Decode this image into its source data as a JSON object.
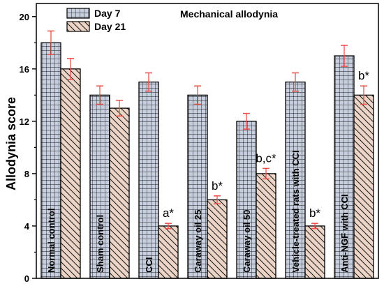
{
  "chart_data": {
    "type": "bar",
    "title": "Mechanical allodynia",
    "xlabel": "",
    "ylabel": "Allodynia score",
    "ylim": [
      0,
      21
    ],
    "yticks": [
      0,
      4,
      8,
      12,
      16,
      20
    ],
    "legend_position": "top-left",
    "categories": [
      "Normal control",
      "Sham control",
      "CCI",
      "Caraway oil 25",
      "Caraway oil 50",
      "Vehicle-treated rats with CCI",
      "Anti-NGF with CCI"
    ],
    "series": [
      {
        "name": "Day 7",
        "color": "#c7cfdf",
        "pattern": "grid",
        "values": [
          18,
          14,
          15,
          14,
          12,
          15,
          17
        ],
        "errors": [
          0.9,
          0.7,
          0.7,
          0.7,
          0.6,
          0.7,
          0.8
        ]
      },
      {
        "name": "Day 21",
        "color": "#ecd5c6",
        "pattern": "diagonal",
        "values": [
          16,
          13,
          4,
          6,
          8,
          4,
          14
        ],
        "errors": [
          0.8,
          0.6,
          0.2,
          0.3,
          0.4,
          0.2,
          0.7
        ]
      }
    ],
    "annotations": [
      "",
      "",
      "a*",
      "b*",
      "b,c*",
      "b*",
      "b*"
    ],
    "error_bar_color": "#e8504a"
  }
}
